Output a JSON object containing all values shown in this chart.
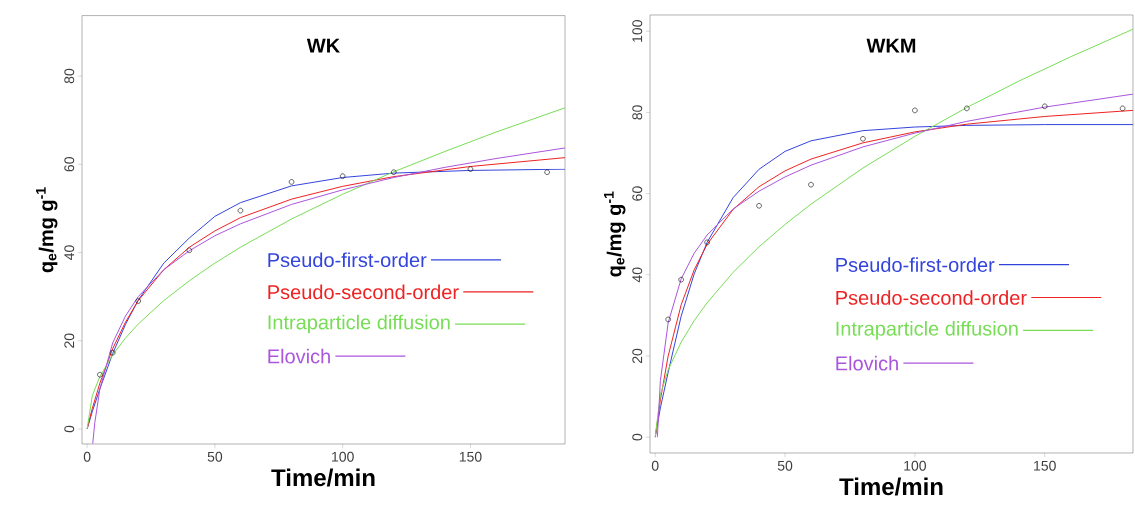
{
  "chart_data": [
    {
      "type": "line",
      "title": "WK",
      "xlabel": "Time/min",
      "ylabel": "q$_{e}$/mg g$^{-1}$",
      "xlim": [
        -2,
        187
      ],
      "ylim": [
        -3.4,
        93.7
      ],
      "xticks": [
        0,
        50,
        100,
        150
      ],
      "yticks": [
        0,
        20,
        40,
        60,
        80
      ],
      "grid": false,
      "legend": "right",
      "series": [
        {
          "type": "scatter",
          "marker": "circle",
          "color": "#000000",
          "x": [
            5,
            10,
            20,
            40,
            60,
            80,
            100,
            120,
            150,
            180
          ],
          "values": [
            12.3,
            17.3,
            29,
            40.5,
            49.5,
            56,
            57.3,
            58.2,
            58.9,
            58.2
          ]
        },
        {
          "name": "Pseudo-first-order",
          "color": "#3344dd",
          "x": [
            0,
            2,
            5,
            10,
            15,
            20,
            30,
            40,
            50,
            60,
            80,
            100,
            120,
            150,
            187
          ],
          "values": [
            0,
            3.9,
            9.1,
            17.1,
            23.7,
            29.2,
            37.6,
            43.3,
            48.2,
            51.3,
            55.1,
            57.0,
            58.0,
            58.6,
            58.9
          ]
        },
        {
          "name": "Pseudo-second-order",
          "color": "#ee2222",
          "x": [
            0,
            2,
            5,
            10,
            15,
            20,
            30,
            40,
            50,
            60,
            80,
            100,
            120,
            150,
            187
          ],
          "values": [
            0,
            4.6,
            10.4,
            18.2,
            24.2,
            29.1,
            36.1,
            41.2,
            44.9,
            47.9,
            52.1,
            55.0,
            57.2,
            59.5,
            61.5
          ]
        },
        {
          "name": "Intraparticle diffusion",
          "color": "#77dd55",
          "x": [
            0,
            2,
            5,
            10,
            15,
            20,
            30,
            40,
            50,
            60,
            80,
            100,
            120,
            140,
            160,
            187
          ],
          "values": [
            0,
            7.5,
            11.9,
            16.8,
            20.6,
            23.8,
            29.1,
            33.6,
            37.6,
            41.2,
            47.6,
            53.2,
            58.3,
            62.9,
            67.3,
            72.8
          ]
        },
        {
          "name": "Elovich",
          "color": "#aa55dd",
          "x": [
            2.2,
            3,
            5,
            10,
            15,
            20,
            30,
            40,
            50,
            60,
            80,
            100,
            120,
            140,
            160,
            187
          ],
          "values": [
            -3.3,
            1.4,
            9.1,
            19.5,
            25.6,
            30.0,
            36.1,
            40.4,
            43.8,
            46.5,
            50.9,
            54.2,
            57.0,
            59.3,
            61.3,
            63.7
          ]
        }
      ]
    },
    {
      "type": "line",
      "title": "WKM",
      "xlabel": "Time/min",
      "ylabel": "q$_{e}$/mg g$^{-1}$",
      "xlim": [
        -2,
        184
      ],
      "ylim": [
        -3.9,
        104
      ],
      "xticks": [
        0,
        50,
        100,
        150
      ],
      "yticks": [
        0,
        20,
        40,
        60,
        80,
        100
      ],
      "grid": false,
      "legend": "right",
      "series": [
        {
          "type": "scatter",
          "marker": "circle",
          "color": "#000000",
          "x": [
            5,
            10,
            20,
            40,
            60,
            80,
            100,
            120,
            150,
            180
          ],
          "values": [
            29,
            38.8,
            48,
            57,
            62.2,
            73.5,
            80.5,
            81,
            81.5,
            81
          ]
        },
        {
          "name": "Pseudo-first-order",
          "color": "#3344dd",
          "x": [
            0,
            2,
            5,
            10,
            15,
            20,
            30,
            40,
            50,
            60,
            80,
            100,
            120,
            150,
            184
          ],
          "values": [
            0,
            7.2,
            16.0,
            29.8,
            40.2,
            48.0,
            59.0,
            66.0,
            70.4,
            73.0,
            75.5,
            76.4,
            76.8,
            77.0,
            77.0
          ]
        },
        {
          "name": "Pseudo-second-order",
          "color": "#ee2222",
          "x": [
            0,
            2,
            5,
            10,
            15,
            20,
            30,
            40,
            50,
            60,
            80,
            100,
            120,
            150,
            184
          ],
          "values": [
            0,
            9.2,
            20.0,
            32.6,
            41.2,
            47.5,
            56.1,
            61.7,
            65.6,
            68.5,
            72.5,
            75.2,
            77.1,
            79.0,
            80.5
          ]
        },
        {
          "name": "Intraparticle diffusion",
          "color": "#77dd55",
          "x": [
            0,
            2,
            5,
            10,
            15,
            20,
            30,
            40,
            50,
            60,
            80,
            100,
            120,
            140,
            160,
            184
          ],
          "values": [
            0,
            10.5,
            16.6,
            23.4,
            28.7,
            33.1,
            40.6,
            46.9,
            52.4,
            57.4,
            66.3,
            74.1,
            81.2,
            87.7,
            93.7,
            100.5
          ]
        },
        {
          "name": "Elovich",
          "color": "#aa55dd",
          "x": [
            0.82,
            2,
            5,
            10,
            15,
            20,
            30,
            40,
            50,
            60,
            80,
            100,
            120,
            150,
            184
          ],
          "values": [
            0,
            13.9,
            28.2,
            39.0,
            45.3,
            49.8,
            56.2,
            60.6,
            64.1,
            67.0,
            71.5,
            74.9,
            77.8,
            81.3,
            84.5
          ]
        }
      ]
    }
  ]
}
